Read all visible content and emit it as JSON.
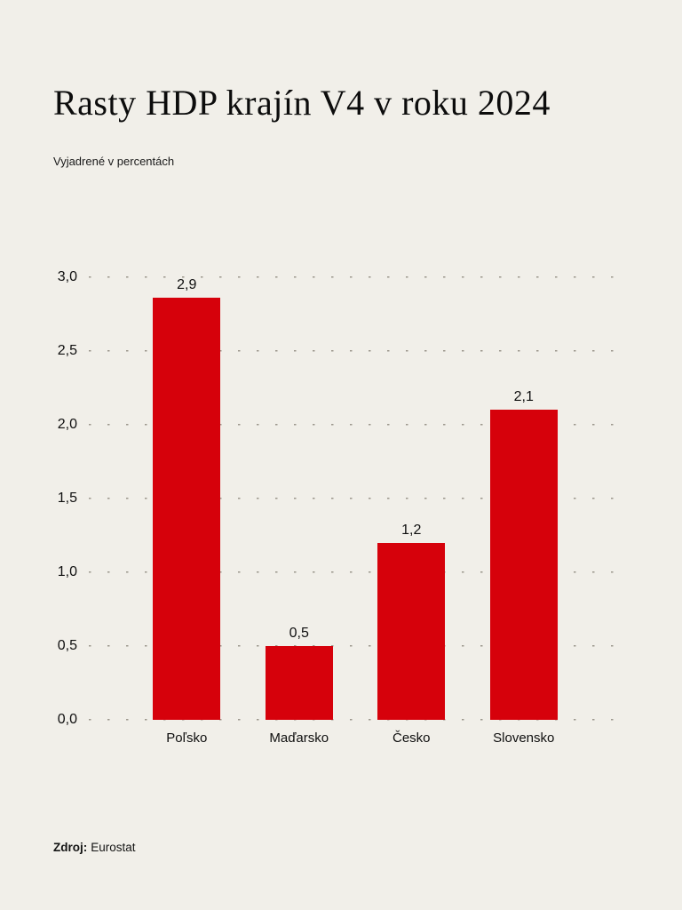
{
  "header": {
    "title": "Rasty HDP krajín V4 v roku 2024",
    "subtitle": "Vyjadrené v percentách"
  },
  "chart_data": {
    "type": "bar",
    "title": "Rasty HDP krajín V4 v roku 2024",
    "subtitle": "Vyjadrené v percentách",
    "categories": [
      "Poľsko",
      "Maďarsko",
      "Česko",
      "Slovensko"
    ],
    "values": [
      2.9,
      0.5,
      1.2,
      2.1
    ],
    "value_labels": [
      "2,9",
      "0,5",
      "1,2",
      "2,1"
    ],
    "unit": "percent",
    "ylim": [
      0,
      3.0
    ],
    "yticks": [
      {
        "value": 0.0,
        "label": "0,0"
      },
      {
        "value": 0.5,
        "label": "0,5"
      },
      {
        "value": 1.0,
        "label": "1,0"
      },
      {
        "value": 1.5,
        "label": "1,5"
      },
      {
        "value": 2.0,
        "label": "2,0"
      },
      {
        "value": 2.5,
        "label": "2,5"
      },
      {
        "value": 3.0,
        "label": "3,0"
      }
    ],
    "grid": "horizontal-dotted",
    "legend_position": "none"
  },
  "footer": {
    "source_label": "Zdroj:",
    "source_text": "Eurostat"
  },
  "colors": {
    "background": "#f1efe9",
    "bar": "#d6010b",
    "grid_dots": "#9c978d",
    "text": "#111111"
  }
}
